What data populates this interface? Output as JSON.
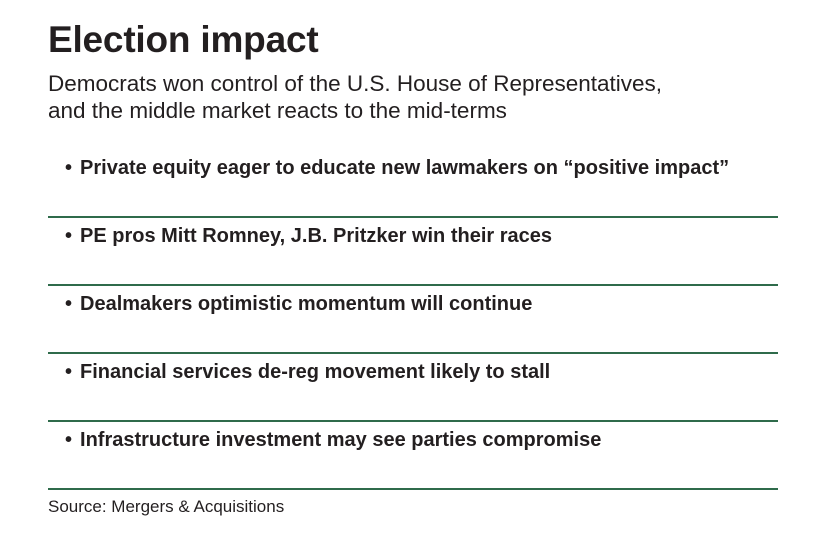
{
  "title": "Election impact",
  "subtitle": {
    "line1": "Democrats won control of the U.S. House of Representatives,",
    "line2": "and the middle market reacts to the mid-terms"
  },
  "bullet_symbol": "•",
  "items": [
    "Private equity eager to educate new lawmakers on “positive impact”",
    "PE pros Mitt Romney, J.B. Pritzker win their races",
    "Dealmakers optimistic momentum will continue",
    "Financial services de-reg movement likely to stall",
    "Infrastructure investment may see parties compromise"
  ],
  "source": "Source: Mergers & Acquisitions",
  "colors": {
    "divider": "#2f6b4b",
    "text": "#231f20"
  }
}
